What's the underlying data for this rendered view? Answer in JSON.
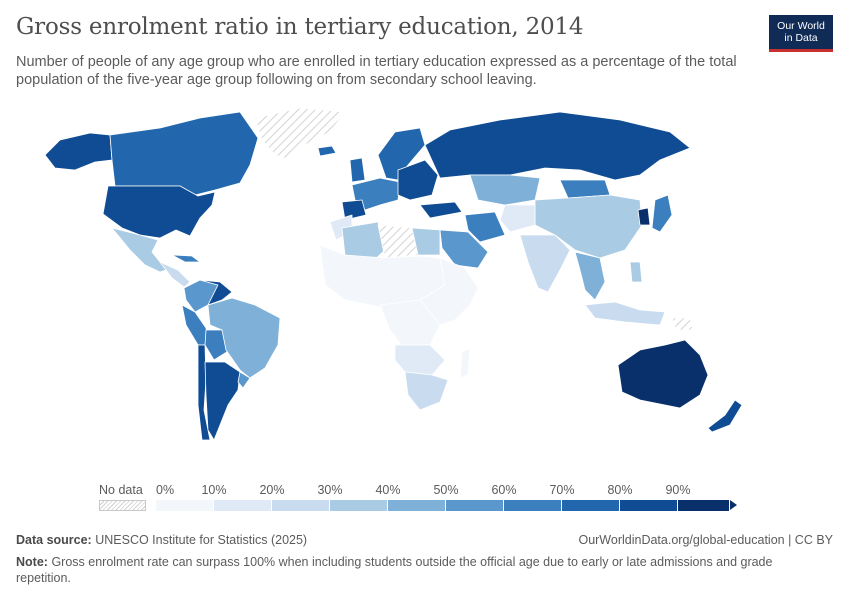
{
  "title": "Gross enrolment ratio in tertiary education, 2014",
  "subtitle": "Number of people of any age group who are enrolled in tertiary education expressed as a percentage of the total population of the five-year age group following on from secondary school leaving.",
  "logo": {
    "line1": "Our World",
    "line2": "in Data"
  },
  "legend": {
    "no_data_label": "No data",
    "ticks": [
      "0%",
      "10%",
      "20%",
      "30%",
      "40%",
      "50%",
      "60%",
      "70%",
      "80%",
      "90%"
    ],
    "colors": [
      "#f3f7fc",
      "#dfeaf6",
      "#c9dbee",
      "#a9cbe3",
      "#7fb1d8",
      "#5a97cc",
      "#3b7fbe",
      "#2267ad",
      "#0f4c94",
      "#09306a"
    ]
  },
  "colors": {
    "no_data_hatch": "#d2d2d2",
    "ocean": "#ffffff",
    "border": "#ffffff"
  },
  "map_regions": [
    {
      "name": "Canada",
      "value": 70
    },
    {
      "name": "United States",
      "value": 85
    },
    {
      "name": "Mexico",
      "value": 25
    },
    {
      "name": "Brazil",
      "value": 50
    },
    {
      "name": "Argentina",
      "value": 80
    },
    {
      "name": "Chile",
      "value": 85
    },
    {
      "name": "Russia",
      "value": 80
    },
    {
      "name": "China",
      "value": 40
    },
    {
      "name": "India",
      "value": 25
    },
    {
      "name": "Australia",
      "value": 90
    },
    {
      "name": "Kazakhstan",
      "value": 45
    },
    {
      "name": "Saudi Arabia",
      "value": 60
    },
    {
      "name": "Iran",
      "value": 65
    },
    {
      "name": "Turkey",
      "value": 85
    },
    {
      "name": "South Korea",
      "value": 95
    },
    {
      "name": "Japan",
      "value": 63
    },
    {
      "name": "Indonesia",
      "value": 30
    },
    {
      "name": "Algeria",
      "value": 33
    },
    {
      "name": "Egypt",
      "value": 32
    }
  ],
  "footer": {
    "source_label": "Data source:",
    "source_text": "UNESCO Institute for Statistics (2025)",
    "site": "OurWorldinData.org/global-education | CC BY",
    "note_label": "Note:",
    "note_text": "Gross enrolment rate can surpass 100% when including students outside the official age due to early or late admissions and grade repetition."
  }
}
